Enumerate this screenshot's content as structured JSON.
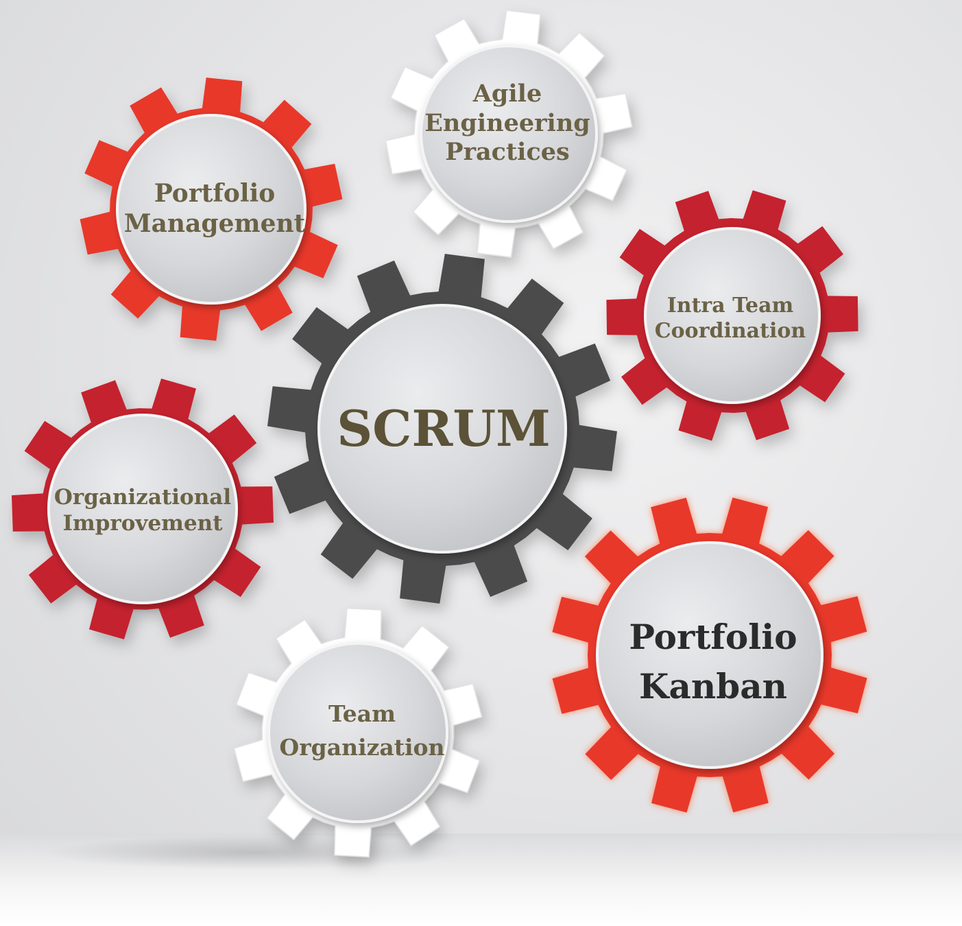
{
  "colors": {
    "red_bright": "#e8392c",
    "red_dark": "#c4232e",
    "gray_dark": "#4b4b4b",
    "white": "#ffffff",
    "label_olive": "#6b6246",
    "label_dark": "#2b2b2b",
    "hub_light": "#e4e5e7",
    "hub_mid": "#c7c9cc"
  },
  "gears": {
    "scrum": {
      "lines": [
        "SCRUM"
      ],
      "color": "#4b4b4b"
    },
    "portfolio_management": {
      "lines": [
        "Portfolio",
        "Management"
      ],
      "color": "#e8392c"
    },
    "agile_engineering_practices": {
      "lines": [
        "Agile",
        "Engineering",
        "Practices"
      ],
      "color": "#ffffff"
    },
    "intra_team_coordination": {
      "lines": [
        "Intra Team",
        "Coordination"
      ],
      "color": "#c4232e"
    },
    "organizational_improvement": {
      "lines": [
        "Organizational",
        "Improvement"
      ],
      "color": "#c4232e"
    },
    "portfolio_kanban": {
      "lines": [
        "Portfolio",
        "Kanban"
      ],
      "color": "#e8392c"
    },
    "team_organization": {
      "lines": [
        "Team",
        "Organization"
      ],
      "color": "#ffffff"
    }
  }
}
